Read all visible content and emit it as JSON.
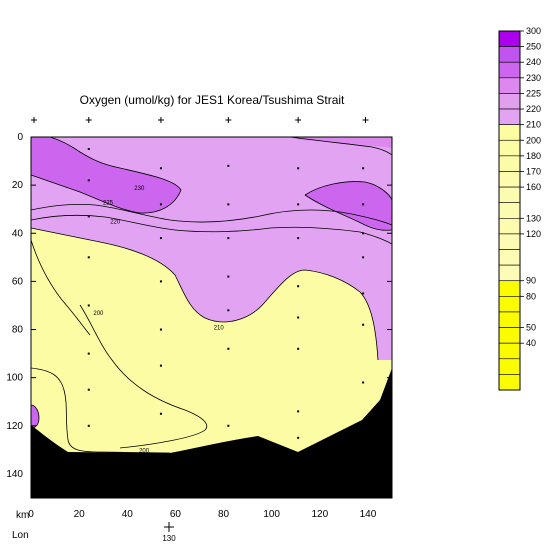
{
  "chart_data": {
    "type": "heatmap",
    "title": "Oxygen (umol/kg) for JES1 Korea/Tsushima Strait",
    "x_axis_label": "km",
    "secondary_axis_label": "Lon",
    "secondary_tick": "130",
    "xlim": [
      0,
      150
    ],
    "ylim": [
      150,
      0
    ],
    "x_ticks": [
      0,
      20,
      40,
      60,
      80,
      100,
      120,
      140
    ],
    "y_ticks": [
      0,
      20,
      40,
      60,
      80,
      100,
      120,
      140
    ],
    "station_x": [
      0,
      24,
      54,
      82,
      111,
      139
    ],
    "colorbar": {
      "labels": [
        300,
        250,
        240,
        230,
        225,
        220,
        210,
        200,
        180,
        170,
        160,
        130,
        120,
        90,
        80,
        50,
        40
      ],
      "levels": [
        300,
        250,
        240,
        230,
        225,
        220,
        210,
        200,
        180,
        170,
        160,
        150,
        130,
        120,
        110,
        100,
        90,
        80,
        70,
        50,
        40,
        30,
        20,
        10
      ],
      "colors": [
        "#aa00ee",
        "#bf55ee",
        "#cc66ee",
        "#dd88ee",
        "#e0a0ee",
        "#e2a4f2",
        "#fcfca0",
        "#fcfca4",
        "#fcfca8",
        "#fcfcac",
        "#fcfcb0",
        "#fcfcb0",
        "#fcfcb0",
        "#fcfcb4",
        "#fcfcb4",
        "#fcfcb8",
        "#fcfc00",
        "#fcfc00",
        "#fcfc00",
        "#fcfc00",
        "#fcfc00",
        "#fcfc00",
        "#fcfc00"
      ]
    },
    "contour_labels": [
      {
        "text": "230",
        "x": 45,
        "y": 22
      },
      {
        "text": "225",
        "x": 32,
        "y": 28
      },
      {
        "text": "220",
        "x": 35,
        "y": 36
      },
      {
        "text": "200",
        "x": 28,
        "y": 74
      },
      {
        "text": "210",
        "x": 78,
        "y": 80
      },
      {
        "text": "200",
        "x": 47,
        "y": 131
      }
    ],
    "sample_points": [
      {
        "x": 24,
        "y": 5
      },
      {
        "x": 24,
        "y": 18
      },
      {
        "x": 24,
        "y": 33
      },
      {
        "x": 24,
        "y": 50
      },
      {
        "x": 24,
        "y": 70
      },
      {
        "x": 24,
        "y": 90
      },
      {
        "x": 24,
        "y": 105
      },
      {
        "x": 24,
        "y": 120
      },
      {
        "x": 54,
        "y": 13
      },
      {
        "x": 54,
        "y": 28
      },
      {
        "x": 54,
        "y": 42
      },
      {
        "x": 54,
        "y": 60
      },
      {
        "x": 54,
        "y": 80
      },
      {
        "x": 54,
        "y": 95
      },
      {
        "x": 54,
        "y": 115
      },
      {
        "x": 82,
        "y": 12
      },
      {
        "x": 82,
        "y": 28
      },
      {
        "x": 82,
        "y": 42
      },
      {
        "x": 82,
        "y": 58
      },
      {
        "x": 82,
        "y": 72
      },
      {
        "x": 82,
        "y": 88
      },
      {
        "x": 82,
        "y": 120
      },
      {
        "x": 111,
        "y": 13
      },
      {
        "x": 111,
        "y": 28
      },
      {
        "x": 111,
        "y": 42
      },
      {
        "x": 111,
        "y": 62
      },
      {
        "x": 111,
        "y": 75
      },
      {
        "x": 111,
        "y": 88
      },
      {
        "x": 111,
        "y": 114
      },
      {
        "x": 111,
        "y": 125
      },
      {
        "x": 138,
        "y": 13
      },
      {
        "x": 138,
        "y": 28
      },
      {
        "x": 138,
        "y": 40
      },
      {
        "x": 138,
        "y": 50
      },
      {
        "x": 138,
        "y": 65
      },
      {
        "x": 138,
        "y": 78
      },
      {
        "x": 138,
        "y": 102
      }
    ]
  }
}
